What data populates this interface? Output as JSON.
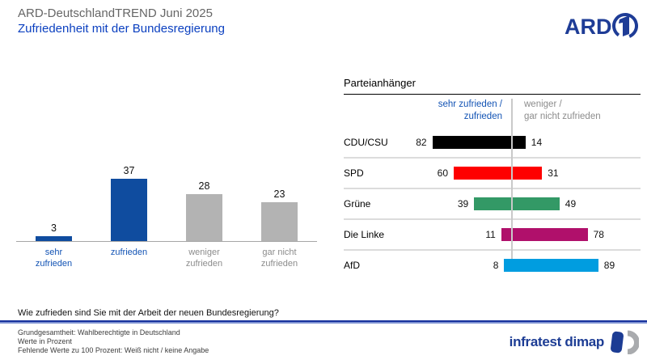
{
  "header": {
    "pretitle": "ARD-DeutschlandTREND Juni 2025",
    "title": "Zufriedenheit mit der Bundesregierung",
    "ard_logo_text": "ARD"
  },
  "chart_data": [
    {
      "id": "gesamt",
      "type": "bar",
      "unit": "percent",
      "categories": [
        "sehr zufrieden",
        "zufrieden",
        "weniger zufrieden",
        "gar nicht zufrieden"
      ],
      "values": [
        3,
        37,
        28,
        23
      ],
      "bar_colors": [
        "#0f4c9f",
        "#0f4c9f",
        "#b3b3b3",
        "#b3b3b3"
      ],
      "label_colors": [
        "#1253b4",
        "#1253b4",
        "#8c8c8c",
        "#8c8c8c"
      ],
      "grid": false,
      "ylim": [
        0,
        40
      ]
    },
    {
      "id": "parteianhaenger",
      "type": "bar",
      "subtype": "diverging-horizontal",
      "unit": "percent",
      "title": "Parteianhänger",
      "legend_left": "sehr zufrieden /\nzufrieden",
      "legend_right": "weniger /\ngar nicht zufrieden",
      "categories": [
        "CDU/CSU",
        "SPD",
        "Grüne",
        "Die Linke",
        "AfD"
      ],
      "series": [
        {
          "name": "sehr zufrieden / zufrieden",
          "side": "left",
          "values": [
            82,
            60,
            39,
            11,
            8
          ]
        },
        {
          "name": "weniger / gar nicht zufrieden",
          "side": "right",
          "values": [
            14,
            31,
            49,
            78,
            89
          ]
        }
      ],
      "party_colors": [
        "#000000",
        "#fe0000",
        "#339966",
        "#b0106b",
        "#009de0"
      ]
    }
  ],
  "question": "Wie zufrieden sind Sie mit der Arbeit der neuen Bundesregierung?",
  "footer": {
    "lines": [
      "Grundgesamtheit: Wahlberechtigte in Deutschland",
      "Werte in Prozent",
      "Fehlende Werte zu 100 Prozent: Weiß nicht / keine Angabe"
    ],
    "brand": "infratest dimap"
  },
  "colors": {
    "accent_bar_blue": "#0f4c9f",
    "title_blue": "#0b40c0",
    "logo_blue": "#1e3c96",
    "brand_blue": "#1c3c94",
    "gray_bar": "#b3b3b3",
    "rule_blue_dark": "#16309c",
    "rule_blue_light": "#7e92d2"
  }
}
